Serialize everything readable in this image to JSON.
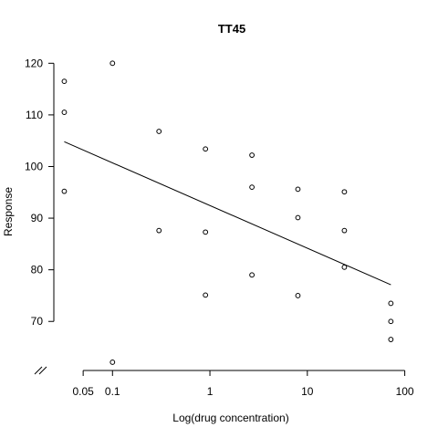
{
  "chart_data": {
    "type": "scatter",
    "title": "TT45",
    "xlabel": "Log(drug concentration)",
    "ylabel": "Response",
    "x_scale": "log",
    "xlim": [
      0.025,
      110
    ],
    "ylim": [
      60.5,
      122
    ],
    "x_ticks": [
      {
        "value": 0.05,
        "label": "0.05"
      },
      {
        "value": 0.1,
        "label": "0.1"
      },
      {
        "value": 1,
        "label": "1"
      },
      {
        "value": 10,
        "label": "10"
      },
      {
        "value": 100,
        "label": "100"
      }
    ],
    "y_ticks": [
      {
        "value": 70,
        "label": "70"
      },
      {
        "value": 80,
        "label": "80"
      },
      {
        "value": 90,
        "label": "90"
      },
      {
        "value": 100,
        "label": "100"
      },
      {
        "value": 110,
        "label": "110"
      },
      {
        "value": 120,
        "label": "120"
      }
    ],
    "axis_break": "x-axis, at zero end",
    "grid": false,
    "points": [
      {
        "x": 0.032,
        "y": 116.5
      },
      {
        "x": 0.032,
        "y": 110.5
      },
      {
        "x": 0.032,
        "y": 95.2
      },
      {
        "x": 0.1,
        "y": 120.0
      },
      {
        "x": 0.1,
        "y": 62.1
      },
      {
        "x": 0.3,
        "y": 106.8
      },
      {
        "x": 0.3,
        "y": 87.6
      },
      {
        "x": 0.9,
        "y": 103.4
      },
      {
        "x": 0.9,
        "y": 87.3
      },
      {
        "x": 0.9,
        "y": 75.1
      },
      {
        "x": 2.7,
        "y": 102.2
      },
      {
        "x": 2.7,
        "y": 96.0
      },
      {
        "x": 2.7,
        "y": 79.0
      },
      {
        "x": 8.0,
        "y": 95.6
      },
      {
        "x": 8.0,
        "y": 90.1
      },
      {
        "x": 8.0,
        "y": 75.0
      },
      {
        "x": 24.0,
        "y": 95.1
      },
      {
        "x": 24.0,
        "y": 87.6
      },
      {
        "x": 24.0,
        "y": 80.5
      },
      {
        "x": 72.0,
        "y": 73.5
      },
      {
        "x": 72.0,
        "y": 70.0
      },
      {
        "x": 72.0,
        "y": 66.5
      }
    ],
    "fit_line": [
      {
        "x": 0.032,
        "y": 104.8
      },
      {
        "x": 72.0,
        "y": 77.1
      }
    ]
  }
}
